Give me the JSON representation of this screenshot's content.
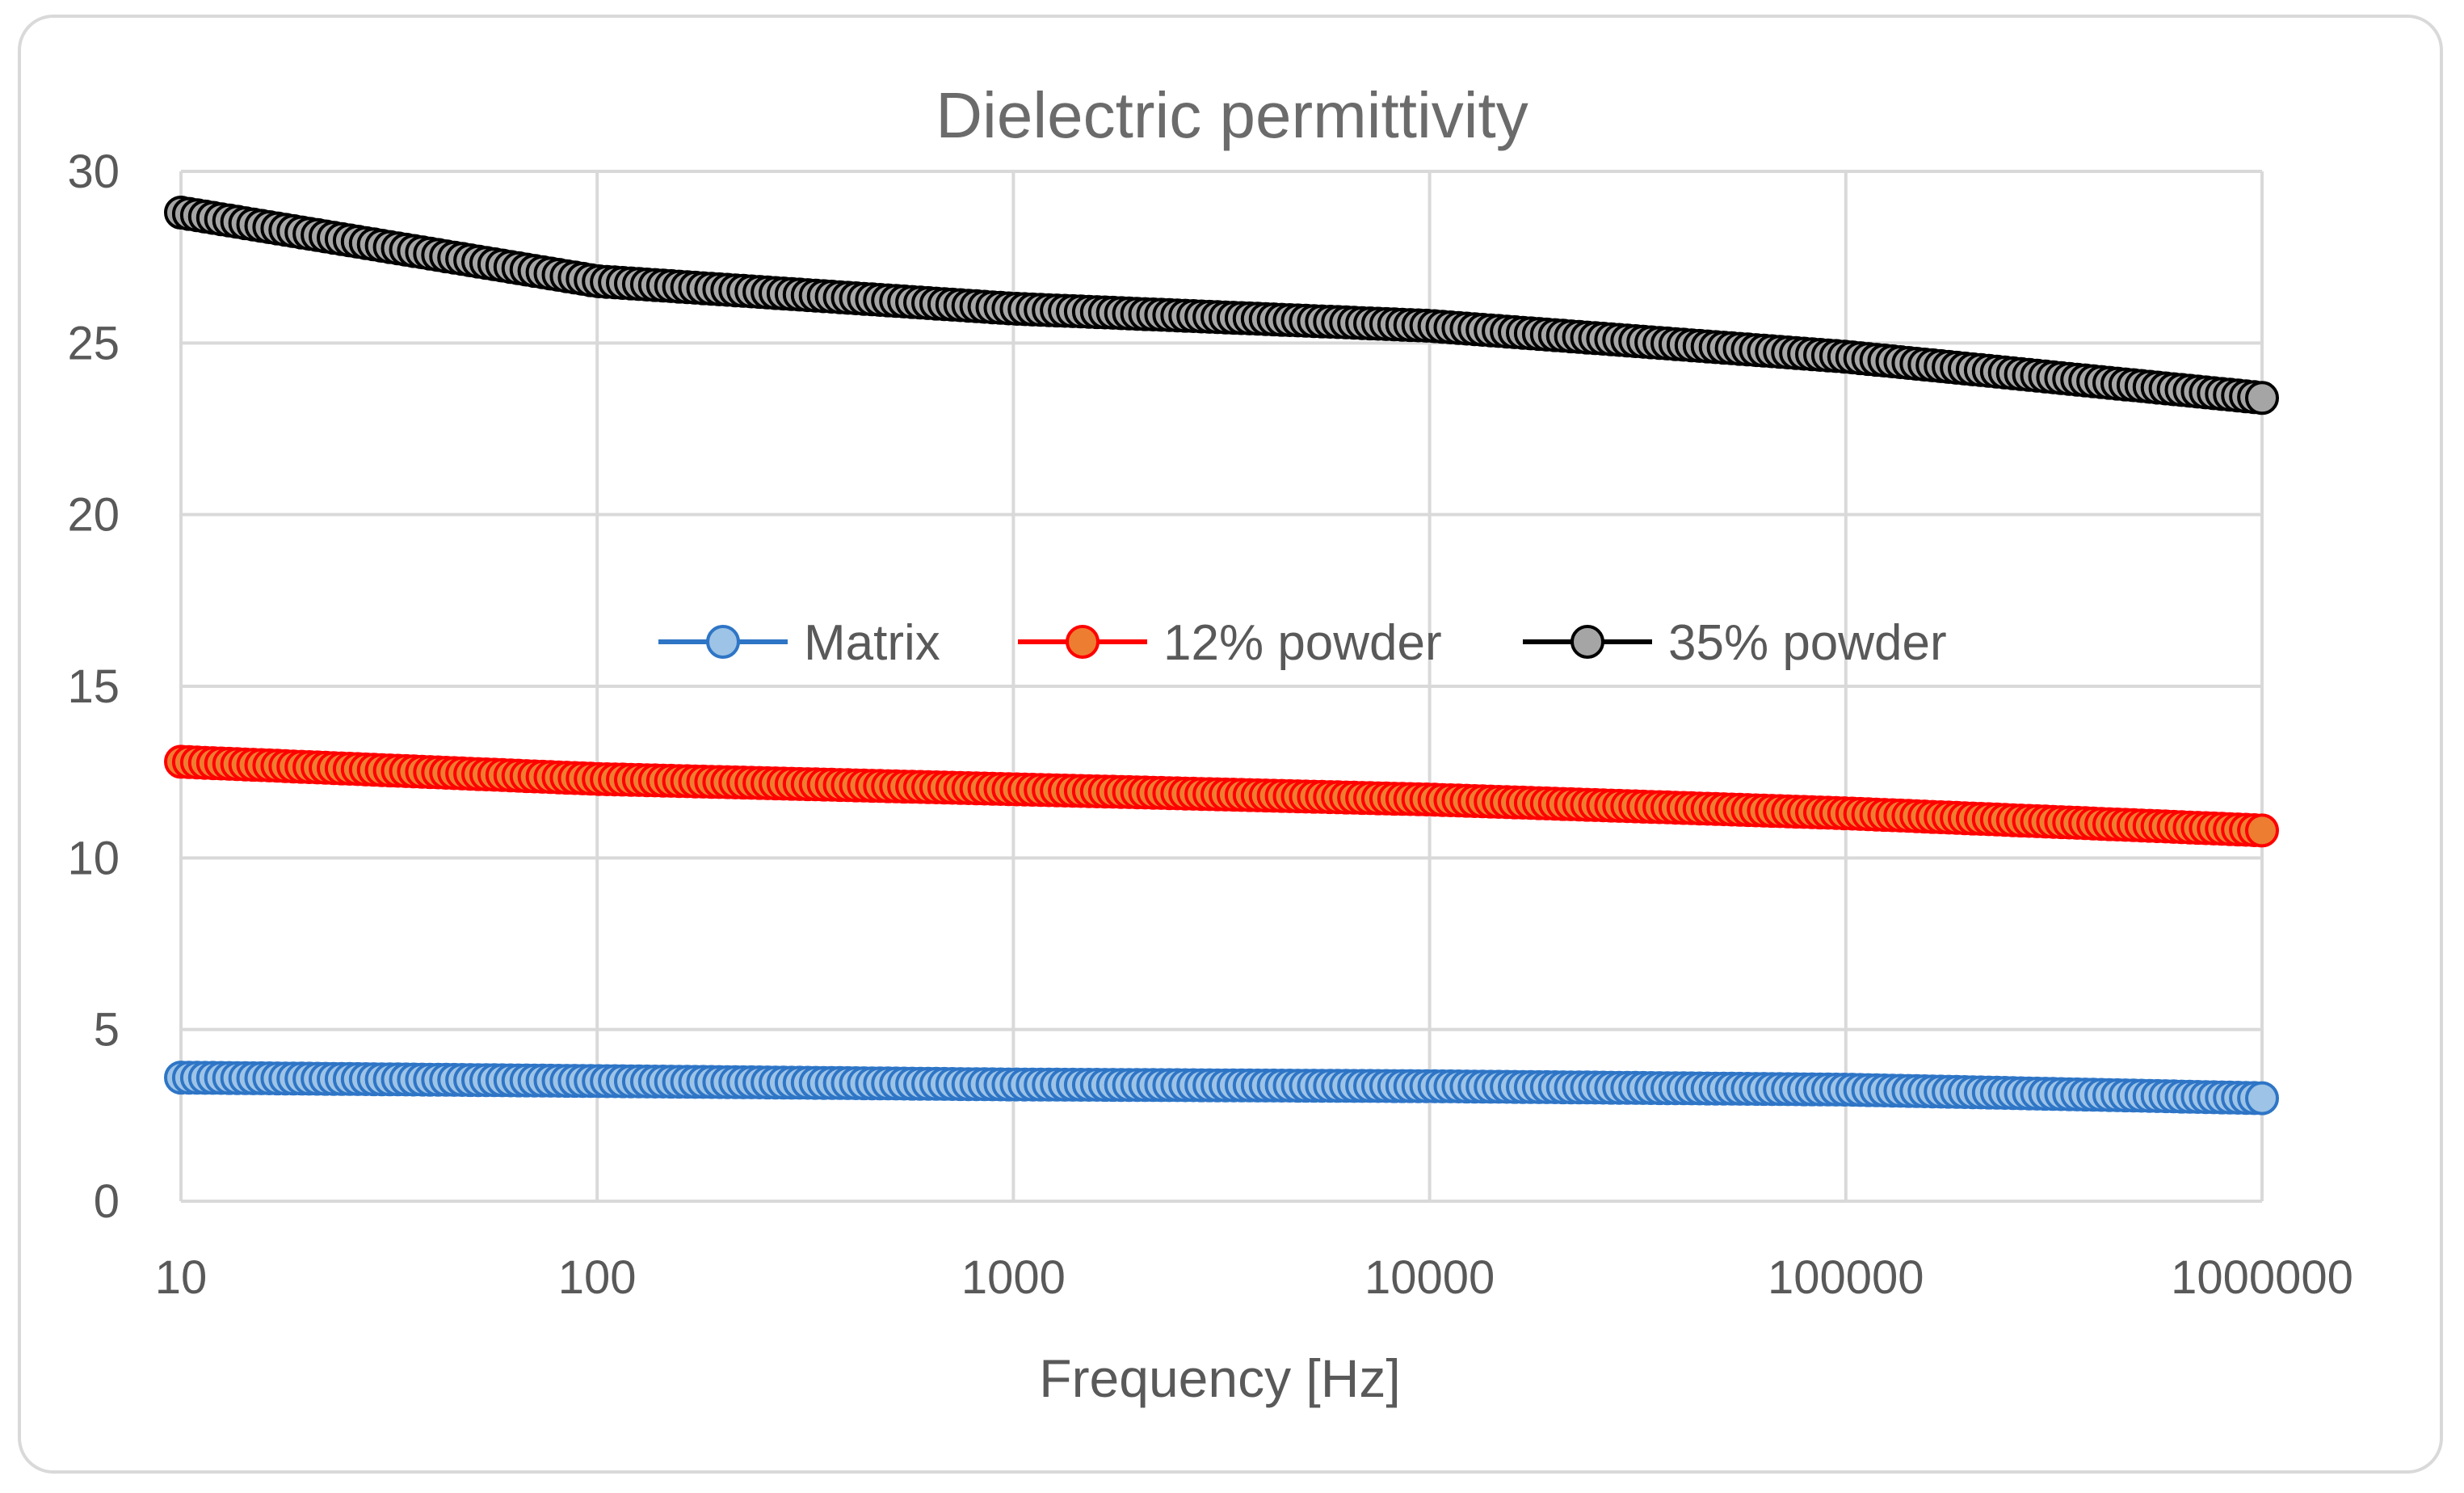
{
  "chart_data": {
    "type": "line",
    "title": "Dielectric permittivity",
    "xlabel": "Frequency [Hz]",
    "ylabel": "",
    "xscale": "log",
    "xlim": [
      10,
      1000000
    ],
    "ylim": [
      0,
      30
    ],
    "x_ticks": [
      "10",
      "100",
      "1000",
      "10000",
      "100000",
      "1000000"
    ],
    "y_ticks": [
      "0",
      "5",
      "10",
      "15",
      "20",
      "25",
      "30"
    ],
    "grid": true,
    "legend_position": "center",
    "series": [
      {
        "name": "Matrix",
        "line_color": "#2e75c6",
        "marker_fill": "#9dc3e6",
        "marker_edge": "#2e75c6",
        "x": [
          10,
          100,
          1000,
          10000,
          100000,
          1000000
        ],
        "values": [
          3.6,
          3.5,
          3.4,
          3.35,
          3.25,
          3.0
        ]
      },
      {
        "name": "12% powder",
        "line_color": "#ff0000",
        "marker_fill": "#ed7d31",
        "marker_edge": "#ff0000",
        "x": [
          10,
          100,
          1000,
          10000,
          100000,
          1000000
        ],
        "values": [
          12.8,
          12.3,
          12.0,
          11.7,
          11.3,
          10.8
        ]
      },
      {
        "name": "35% powder",
        "line_color": "#000000",
        "marker_fill": "#a5a5a5",
        "marker_edge": "#000000",
        "x": [
          10,
          100,
          1000,
          10000,
          100000,
          1000000
        ],
        "values": [
          28.8,
          26.8,
          26.0,
          25.5,
          24.6,
          23.4
        ]
      }
    ]
  }
}
